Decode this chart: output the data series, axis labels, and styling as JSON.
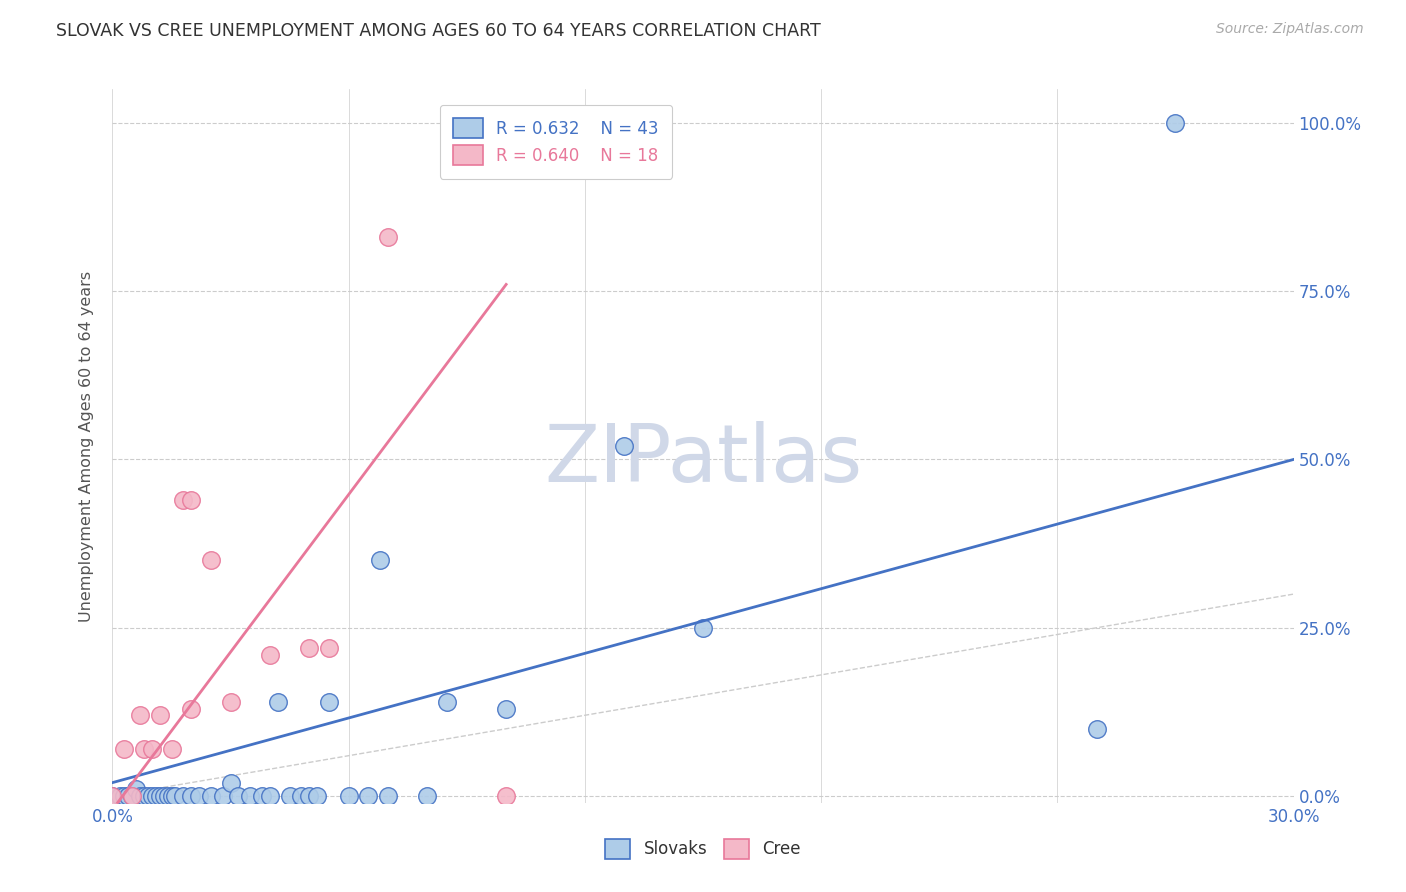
{
  "title": "SLOVAK VS CREE UNEMPLOYMENT AMONG AGES 60 TO 64 YEARS CORRELATION CHART",
  "source": "Source: ZipAtlas.com",
  "ylabel": "Unemployment Among Ages 60 to 64 years",
  "xlim": [
    0.0,
    0.3
  ],
  "ylim": [
    -0.01,
    1.05
  ],
  "yticks": [
    0.0,
    0.25,
    0.5,
    0.75,
    1.0
  ],
  "ytick_labels": [
    "0.0%",
    "25.0%",
    "50.0%",
    "75.0%",
    "100.0%"
  ],
  "xticks": [
    0.0,
    0.06,
    0.12,
    0.18,
    0.24,
    0.3
  ],
  "xtick_labels": [
    "0.0%",
    "",
    "",
    "",
    "",
    "30.0%"
  ],
  "title_color": "#333333",
  "axis_tick_color": "#4472c4",
  "grid_color": "#cccccc",
  "diagonal_color": "#cccccc",
  "slovak_face_color": "#aecce8",
  "cree_face_color": "#f4b8c8",
  "slovak_edge_color": "#4472c4",
  "cree_edge_color": "#e8789a",
  "legend_slovak_R": "0.632",
  "legend_slovak_N": "43",
  "legend_cree_R": "0.640",
  "legend_cree_N": "18",
  "slovak_scatter": [
    [
      0.0,
      0.0
    ],
    [
      0.002,
      0.0
    ],
    [
      0.003,
      0.0
    ],
    [
      0.004,
      0.0
    ],
    [
      0.005,
      0.0
    ],
    [
      0.006,
      0.01
    ],
    [
      0.007,
      0.0
    ],
    [
      0.008,
      0.0
    ],
    [
      0.009,
      0.0
    ],
    [
      0.01,
      0.0
    ],
    [
      0.011,
      0.0
    ],
    [
      0.012,
      0.0
    ],
    [
      0.013,
      0.0
    ],
    [
      0.014,
      0.0
    ],
    [
      0.015,
      0.0
    ],
    [
      0.016,
      0.0
    ],
    [
      0.018,
      0.0
    ],
    [
      0.02,
      0.0
    ],
    [
      0.022,
      0.0
    ],
    [
      0.025,
      0.0
    ],
    [
      0.028,
      0.0
    ],
    [
      0.03,
      0.02
    ],
    [
      0.032,
      0.0
    ],
    [
      0.035,
      0.0
    ],
    [
      0.038,
      0.0
    ],
    [
      0.04,
      0.0
    ],
    [
      0.042,
      0.14
    ],
    [
      0.045,
      0.0
    ],
    [
      0.048,
      0.0
    ],
    [
      0.05,
      0.0
    ],
    [
      0.052,
      0.0
    ],
    [
      0.055,
      0.14
    ],
    [
      0.06,
      0.0
    ],
    [
      0.065,
      0.0
    ],
    [
      0.068,
      0.35
    ],
    [
      0.07,
      0.0
    ],
    [
      0.08,
      0.0
    ],
    [
      0.085,
      0.14
    ],
    [
      0.1,
      0.13
    ],
    [
      0.13,
      0.52
    ],
    [
      0.15,
      0.25
    ],
    [
      0.25,
      0.1
    ],
    [
      0.27,
      1.0
    ]
  ],
  "cree_scatter": [
    [
      0.0,
      0.0
    ],
    [
      0.003,
      0.07
    ],
    [
      0.005,
      0.0
    ],
    [
      0.007,
      0.12
    ],
    [
      0.008,
      0.07
    ],
    [
      0.01,
      0.07
    ],
    [
      0.012,
      0.12
    ],
    [
      0.015,
      0.07
    ],
    [
      0.018,
      0.44
    ],
    [
      0.02,
      0.44
    ],
    [
      0.02,
      0.13
    ],
    [
      0.025,
      0.35
    ],
    [
      0.03,
      0.14
    ],
    [
      0.04,
      0.21
    ],
    [
      0.05,
      0.22
    ],
    [
      0.055,
      0.22
    ],
    [
      0.07,
      0.83
    ],
    [
      0.1,
      0.0
    ]
  ],
  "slovak_trendline": [
    [
      0.0,
      0.02
    ],
    [
      0.3,
      0.5
    ]
  ],
  "cree_trendline": [
    [
      0.0,
      -0.02
    ],
    [
      0.1,
      0.76
    ]
  ],
  "diagonal_line": [
    [
      0.0,
      0.0
    ],
    [
      1.0,
      1.0
    ]
  ],
  "watermark": "ZIPatlas",
  "watermark_color": "#d0d8e8",
  "bottom_legend_labels": [
    "Slovaks",
    "Cree"
  ]
}
